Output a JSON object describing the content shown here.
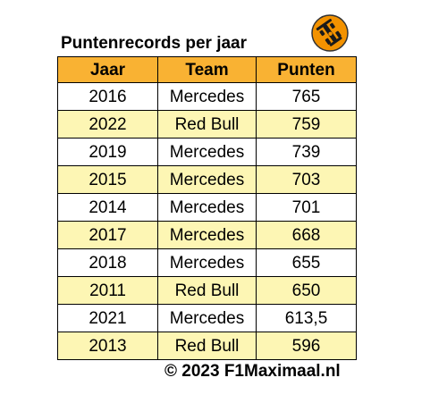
{
  "title": "Puntenrecords per jaar",
  "logo_icon": "f1-car-icon",
  "colors": {
    "header_bg": "#f9b233",
    "row_alt_bg": "#fdf6b4",
    "logo_orange": "#f39200"
  },
  "table": {
    "headers": [
      "Jaar",
      "Team",
      "Punten"
    ],
    "rows": [
      [
        "2016",
        "Mercedes",
        "765"
      ],
      [
        "2022",
        "Red Bull",
        "759"
      ],
      [
        "2019",
        "Mercedes",
        "739"
      ],
      [
        "2015",
        "Mercedes",
        "703"
      ],
      [
        "2014",
        "Mercedes",
        "701"
      ],
      [
        "2017",
        "Mercedes",
        "668"
      ],
      [
        "2018",
        "Mercedes",
        "655"
      ],
      [
        "2011",
        "Red Bull",
        "650"
      ],
      [
        "2021",
        "Mercedes",
        "613,5"
      ],
      [
        "2013",
        "Red Bull",
        "596"
      ]
    ]
  },
  "copyright": "© 2023 F1Maximaal.nl"
}
